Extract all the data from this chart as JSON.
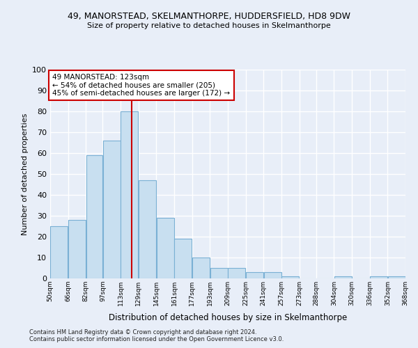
{
  "title1": "49, MANORSTEAD, SKELMANTHORPE, HUDDERSFIELD, HD8 9DW",
  "title2": "Size of property relative to detached houses in Skelmanthorpe",
  "xlabel": "Distribution of detached houses by size in Skelmanthorpe",
  "ylabel": "Number of detached properties",
  "bar_color": "#c8dff0",
  "bar_edge_color": "#7ab0d4",
  "vline_color": "#cc0000",
  "vline_x": 123,
  "annotation_line1": "49 MANORSTEAD: 123sqm",
  "annotation_line2": "← 54% of detached houses are smaller (205)",
  "annotation_line3": "45% of semi-detached houses are larger (172) →",
  "annotation_box_color": "white",
  "annotation_box_edge": "#cc0000",
  "bins": [
    50,
    66,
    82,
    97,
    113,
    129,
    145,
    161,
    177,
    193,
    209,
    225,
    241,
    257,
    273,
    288,
    304,
    320,
    336,
    352,
    368
  ],
  "heights": [
    25,
    28,
    59,
    66,
    80,
    47,
    29,
    19,
    10,
    5,
    5,
    3,
    3,
    1,
    0,
    0,
    1,
    0,
    1,
    1
  ],
  "ylim": [
    0,
    100
  ],
  "yticks": [
    0,
    10,
    20,
    30,
    40,
    50,
    60,
    70,
    80,
    90,
    100
  ],
  "footer1": "Contains HM Land Registry data © Crown copyright and database right 2024.",
  "footer2": "Contains public sector information licensed under the Open Government Licence v3.0.",
  "background_color": "#e8eef8",
  "grid_color": "#ffffff"
}
